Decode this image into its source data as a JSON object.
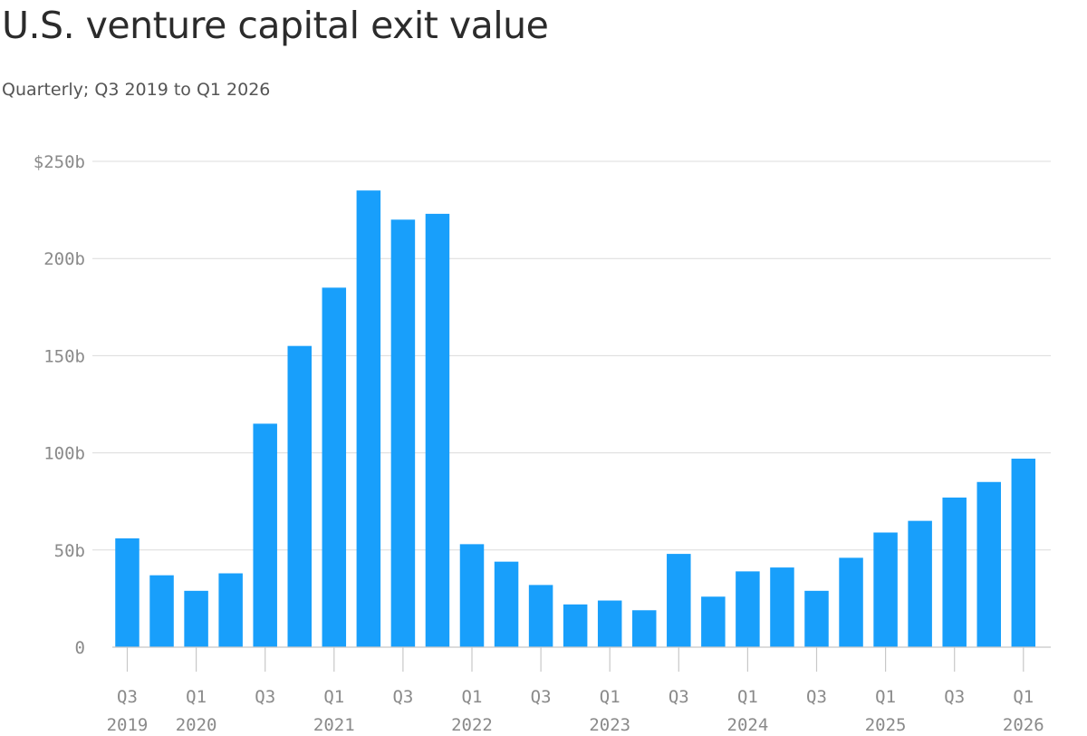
{
  "header": {
    "title": "U.S. venture capital exit value",
    "subtitle": "Quarterly; Q3 2019 to Q1 2026"
  },
  "colors": {
    "bar": "#189ffb",
    "grid": "#dcdcdc",
    "axis_text": "#8a8a8a"
  },
  "chart_data": {
    "type": "bar",
    "title": "U.S. venture capital exit value",
    "subtitle": "Quarterly; Q3 2019 to Q1 2026",
    "xlabel": "",
    "ylabel": "",
    "unit": "$ billions",
    "ylim": [
      0,
      250
    ],
    "grid": true,
    "y_ticks": [
      {
        "value": 0,
        "label": "0"
      },
      {
        "value": 50,
        "label": "50b"
      },
      {
        "value": 100,
        "label": "100b"
      },
      {
        "value": 150,
        "label": "150b"
      },
      {
        "value": 200,
        "label": "200b"
      },
      {
        "value": 250,
        "label": "$250b"
      }
    ],
    "categories": [
      "Q3 2019",
      "Q4 2019",
      "Q1 2020",
      "Q2 2020",
      "Q3 2020",
      "Q4 2020",
      "Q1 2021",
      "Q2 2021",
      "Q3 2021",
      "Q4 2021",
      "Q1 2022",
      "Q2 2022",
      "Q3 2022",
      "Q4 2022",
      "Q1 2023",
      "Q2 2023",
      "Q3 2023",
      "Q4 2023",
      "Q1 2024",
      "Q2 2024",
      "Q3 2024",
      "Q4 2024",
      "Q1 2025",
      "Q2 2025",
      "Q3 2025",
      "Q4 2025",
      "Q1 2026"
    ],
    "values": [
      56,
      37,
      29,
      38,
      115,
      155,
      185,
      235,
      220,
      223,
      53,
      44,
      32,
      22,
      24,
      19,
      48,
      26,
      39,
      41,
      29,
      46,
      59,
      65,
      77,
      85,
      97
    ],
    "x_ticks": [
      {
        "index": 0,
        "quarter": "Q3",
        "year": "2019"
      },
      {
        "index": 2,
        "quarter": "Q1",
        "year": "2020"
      },
      {
        "index": 4,
        "quarter": "Q3",
        "year": ""
      },
      {
        "index": 6,
        "quarter": "Q1",
        "year": "2021"
      },
      {
        "index": 8,
        "quarter": "Q3",
        "year": ""
      },
      {
        "index": 10,
        "quarter": "Q1",
        "year": "2022"
      },
      {
        "index": 12,
        "quarter": "Q3",
        "year": ""
      },
      {
        "index": 14,
        "quarter": "Q1",
        "year": "2023"
      },
      {
        "index": 16,
        "quarter": "Q3",
        "year": ""
      },
      {
        "index": 18,
        "quarter": "Q1",
        "year": "2024"
      },
      {
        "index": 20,
        "quarter": "Q3",
        "year": ""
      },
      {
        "index": 22,
        "quarter": "Q1",
        "year": "2025"
      },
      {
        "index": 24,
        "quarter": "Q3",
        "year": ""
      },
      {
        "index": 26,
        "quarter": "Q1",
        "year": "2026"
      }
    ]
  }
}
